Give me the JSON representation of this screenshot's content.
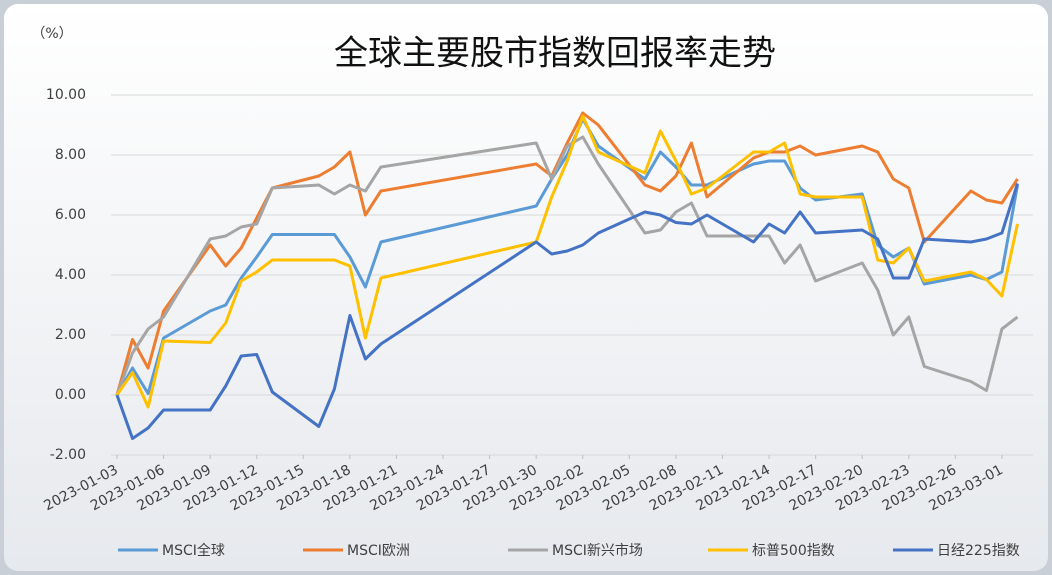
{
  "chart_data": {
    "type": "line",
    "title": "全球主要股市指数回报率走势",
    "y_unit": "（%）",
    "x": [
      "2023-01-03",
      "2023-01-04",
      "2023-01-05",
      "2023-01-06",
      "2023-01-09",
      "2023-01-10",
      "2023-01-11",
      "2023-01-12",
      "2023-01-13",
      "2023-01-16",
      "2023-01-17",
      "2023-01-18",
      "2023-01-19",
      "2023-01-20",
      "2023-01-30",
      "2023-01-31",
      "2023-02-01",
      "2023-02-02",
      "2023-02-03",
      "2023-02-06",
      "2023-02-07",
      "2023-02-08",
      "2023-02-09",
      "2023-02-10",
      "2023-02-13",
      "2023-02-14",
      "2023-02-15",
      "2023-02-16",
      "2023-02-17",
      "2023-02-20",
      "2023-02-21",
      "2023-02-22",
      "2023-02-23",
      "2023-02-24",
      "2023-02-27",
      "2023-02-28",
      "2023-03-01",
      "2023-03-02"
    ],
    "xlim": [
      "2023-01-03",
      "2023-03-03"
    ],
    "xticks": [
      "2023-01-03",
      "2023-01-06",
      "2023-01-09",
      "2023-01-12",
      "2023-01-15",
      "2023-01-18",
      "2023-01-21",
      "2023-01-24",
      "2023-01-27",
      "2023-01-30",
      "2023-02-02",
      "2023-02-05",
      "2023-02-08",
      "2023-02-11",
      "2023-02-14",
      "2023-02-17",
      "2023-02-20",
      "2023-02-23",
      "2023-02-26",
      "2023-03-01"
    ],
    "ylim": [
      -2,
      10
    ],
    "yticks": [
      {
        "value": -2,
        "label": "-2.00"
      },
      {
        "value": 0,
        "label": "0.00"
      },
      {
        "value": 2,
        "label": "2.00"
      },
      {
        "value": 4,
        "label": "4.00"
      },
      {
        "value": 6,
        "label": "6.00"
      },
      {
        "value": 8,
        "label": "8.00"
      },
      {
        "value": 10,
        "label": "10.00"
      }
    ],
    "grid": true,
    "series": [
      {
        "name": "MSCI全球",
        "color": "#5b9bd5",
        "values": [
          0,
          0.9,
          0.05,
          1.9,
          2.8,
          3.0,
          3.9,
          4.6,
          5.35,
          5.35,
          5.35,
          4.6,
          3.6,
          5.1,
          6.3,
          7.2,
          8.0,
          9.2,
          8.3,
          7.2,
          8.1,
          7.6,
          7.0,
          7.0,
          7.7,
          7.8,
          7.8,
          6.9,
          6.5,
          6.7,
          5.0,
          4.6,
          4.9,
          3.7,
          4.0,
          3.85,
          4.1,
          7.0
        ]
      },
      {
        "name": "MSCI欧洲",
        "color": "#ed7d31",
        "values": [
          0,
          1.85,
          0.9,
          2.8,
          5.0,
          4.3,
          4.9,
          5.9,
          6.9,
          7.3,
          7.6,
          8.1,
          6.0,
          6.8,
          7.7,
          7.3,
          8.4,
          9.4,
          9.0,
          7.0,
          6.8,
          7.3,
          8.4,
          6.6,
          7.9,
          8.1,
          8.1,
          8.3,
          8.0,
          8.3,
          8.1,
          7.2,
          6.9,
          5.1,
          6.8,
          6.5,
          6.4,
          7.2
        ]
      },
      {
        "name": "MSCI新兴市场",
        "color": "#a5a5a5",
        "values": [
          0,
          1.4,
          2.2,
          2.6,
          5.2,
          5.3,
          5.6,
          5.7,
          6.9,
          7.0,
          6.7,
          7.0,
          6.8,
          7.6,
          8.4,
          7.2,
          8.3,
          8.6,
          7.7,
          5.4,
          5.5,
          6.1,
          6.4,
          5.3,
          5.3,
          5.3,
          4.4,
          5.0,
          3.8,
          4.4,
          3.5,
          2.0,
          2.6,
          0.95,
          0.45,
          0.15,
          2.2,
          2.6
        ]
      },
      {
        "name": "标普500指数",
        "color": "#ffc000",
        "values": [
          0,
          0.75,
          -0.4,
          1.8,
          1.75,
          2.4,
          3.8,
          4.1,
          4.5,
          4.5,
          4.5,
          4.3,
          1.9,
          3.9,
          5.1,
          6.6,
          7.8,
          9.3,
          8.1,
          7.4,
          8.8,
          7.8,
          6.7,
          6.9,
          8.1,
          8.1,
          8.4,
          6.7,
          6.6,
          6.6,
          4.5,
          4.4,
          4.9,
          3.8,
          4.1,
          3.85,
          3.3,
          5.7
        ]
      },
      {
        "name": "日经225指数",
        "color": "#4472c4",
        "values": [
          0,
          -1.45,
          -1.1,
          -0.5,
          -0.5,
          0.3,
          1.3,
          1.35,
          0.1,
          -1.05,
          0.2,
          2.65,
          1.2,
          1.7,
          5.1,
          4.7,
          4.8,
          5.0,
          5.4,
          6.1,
          6.0,
          5.75,
          5.7,
          6.0,
          5.1,
          5.7,
          5.4,
          6.1,
          5.4,
          5.5,
          5.2,
          3.9,
          3.9,
          5.2,
          5.1,
          5.2,
          5.4,
          7.05
        ]
      }
    ]
  }
}
